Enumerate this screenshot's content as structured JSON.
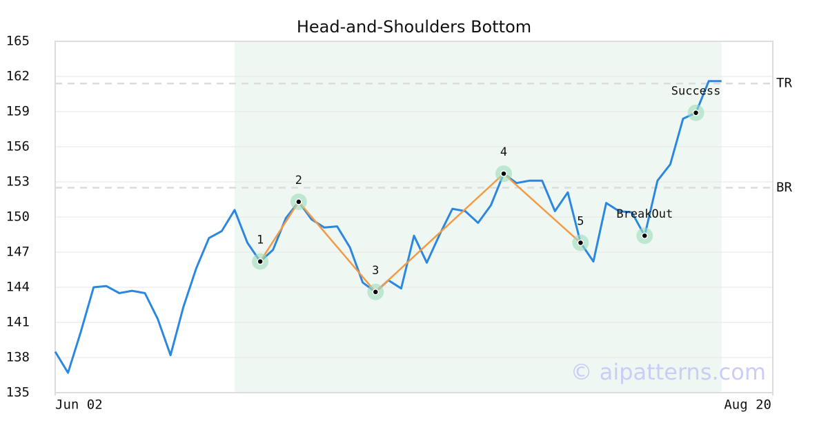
{
  "chart_data": {
    "type": "line",
    "title": "Head-and-Shoulders Bottom",
    "watermark": "© aipatterns.com",
    "x": [
      0,
      1,
      2,
      3,
      4,
      5,
      6,
      7,
      8,
      9,
      10,
      11,
      12,
      13,
      14,
      15,
      16,
      17,
      18,
      19,
      20,
      21,
      22,
      23,
      24,
      25,
      26,
      27,
      28,
      29,
      30,
      31,
      32,
      33,
      34,
      35,
      36,
      37,
      38,
      39,
      40,
      41,
      42,
      43,
      44,
      45,
      46,
      47,
      48,
      49,
      50,
      51,
      52
    ],
    "series": [
      {
        "color": "#2b87e0",
        "values": [
          138.5,
          136.7,
          140.2,
          144.0,
          144.1,
          143.5,
          143.7,
          143.5,
          141.3,
          138.2,
          142.3,
          145.6,
          148.2,
          148.8,
          150.6,
          147.8,
          146.2,
          147.2,
          149.9,
          151.3,
          149.8,
          149.1,
          149.2,
          147.4,
          144.4,
          143.6,
          144.6,
          143.9,
          148.4,
          146.1,
          148.5,
          150.7,
          150.5,
          149.5,
          151.0,
          153.7,
          152.9,
          153.1,
          153.1,
          150.5,
          152.1,
          147.8,
          146.2,
          151.2,
          150.5,
          150.4,
          148.4,
          153.1,
          154.5,
          158.4,
          158.9,
          161.6,
          161.6
        ]
      }
    ],
    "xlim": [
      0,
      56
    ],
    "xticks": [
      {
        "value": 0,
        "label": "Jun 02"
      },
      {
        "value": 56,
        "label": "Aug 20"
      }
    ],
    "ylim": [
      135,
      165
    ],
    "yticks": [
      135,
      138,
      141,
      144,
      147,
      150,
      153,
      156,
      159,
      162,
      165
    ],
    "grid": true,
    "shaded_range": [
      14,
      52
    ],
    "shade_color": "#eef7f1",
    "reference_lines": [
      {
        "label": "TR",
        "value": 161.4
      },
      {
        "label": "BR",
        "value": 152.5
      }
    ],
    "pattern_color": "#f39a45",
    "annotations": [
      {
        "label": "1",
        "x": 16,
        "y": 146.2,
        "pattern": true
      },
      {
        "label": "2",
        "x": 19,
        "y": 151.3,
        "pattern": true
      },
      {
        "label": "3",
        "x": 25,
        "y": 143.6,
        "pattern": true
      },
      {
        "label": "4",
        "x": 35,
        "y": 153.7,
        "pattern": true
      },
      {
        "label": "5",
        "x": 41,
        "y": 147.8,
        "pattern": true
      },
      {
        "label": "BreakOut",
        "x": 46,
        "y": 148.4,
        "pattern": false
      },
      {
        "label": "Success",
        "x": 50,
        "y": 158.9,
        "pattern": false
      }
    ]
  }
}
